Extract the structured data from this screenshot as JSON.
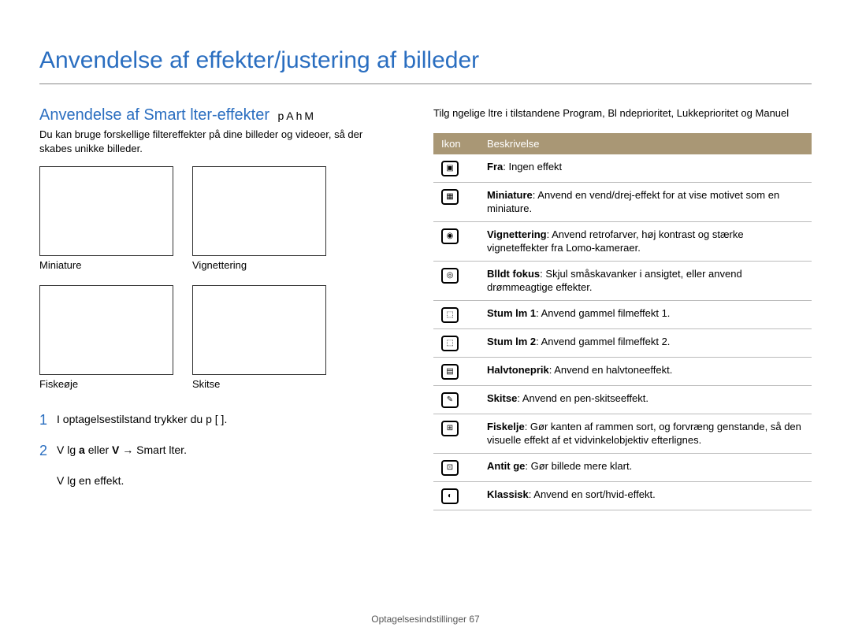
{
  "page": {
    "main_title": "Anvendelse af effekter/justering af billeder",
    "footer": "Optagelsesindstillinger  67"
  },
  "left": {
    "sub_title": "Anvendelse af Smart lter-effekter",
    "mode_glyphs": "pAhM",
    "intro": "Du kan bruge forskellige filtereffekter på dine billeder og videoer, så der skabes unikke billeder.",
    "thumbs": [
      {
        "label": "Miniature"
      },
      {
        "label": "Vignettering"
      },
      {
        "label": "Fiskeøje"
      },
      {
        "label": "Skitse"
      }
    ],
    "steps": [
      {
        "num": "1",
        "text": "I optagelsestilstand trykker du p  [        ]."
      },
      {
        "num": "2",
        "text_a": "V lg  ",
        "text_b_bold": "a",
        "text_c": "    eller ",
        "text_d_bold": "V",
        "text_e": "    →  Smart lter."
      },
      {
        "num": "",
        "text": "V lg en effekt."
      }
    ]
  },
  "right": {
    "intro": "Tilg ngelige  ltre i tilstandene Program, Bl ndeprioritet, Lukkeprioritet og Manuel",
    "table_header": {
      "ikon": "Ikon",
      "besk": "Beskrivelse"
    },
    "rows": [
      {
        "name": "Fra",
        "desc": ": Ingen effekt"
      },
      {
        "name": "Miniature",
        "desc": ": Anvend en vend/drej-effekt for at vise motivet som en miniature."
      },
      {
        "name": "Vignettering",
        "desc": ": Anvend retrofarver, høj kontrast og stærke vigneteffekter fra Lomo-kameraer."
      },
      {
        "name": "Blldt fokus",
        "desc": ": Skjul småskavanker i ansigtet, eller anvend drømmeagtige effekter."
      },
      {
        "name": "Stum lm 1",
        "desc": ": Anvend gammel filmeffekt 1."
      },
      {
        "name": "Stum lm 2",
        "desc": ": Anvend gammel filmeffekt 2."
      },
      {
        "name": "Halvtoneprik",
        "desc": ": Anvend en halvtoneeffekt."
      },
      {
        "name": "Skitse",
        "desc": ": Anvend en pen-skitseeffekt."
      },
      {
        "name": "Fiskelje",
        "desc": ": Gør kanten af rammen sort, og forvræng genstande, så den visuelle effekt af et vidvinkelobjektiv efterlignes."
      },
      {
        "name": "Antit ge",
        "desc": ": Gør billede mere klart."
      },
      {
        "name": "Klassisk",
        "desc": ": Anvend en sort/hvid-effekt."
      }
    ],
    "icon_glyphs": [
      "▣",
      "▦",
      "◉",
      "◎",
      "⬚",
      "⬚",
      "▤",
      "✎",
      "⊞",
      "⊡",
      "◐"
    ]
  },
  "colors": {
    "title_blue": "#2a6ec0",
    "table_header_bg": "#a99775",
    "table_header_fg": "#ffffff",
    "border_gray": "#bbbbbb"
  }
}
